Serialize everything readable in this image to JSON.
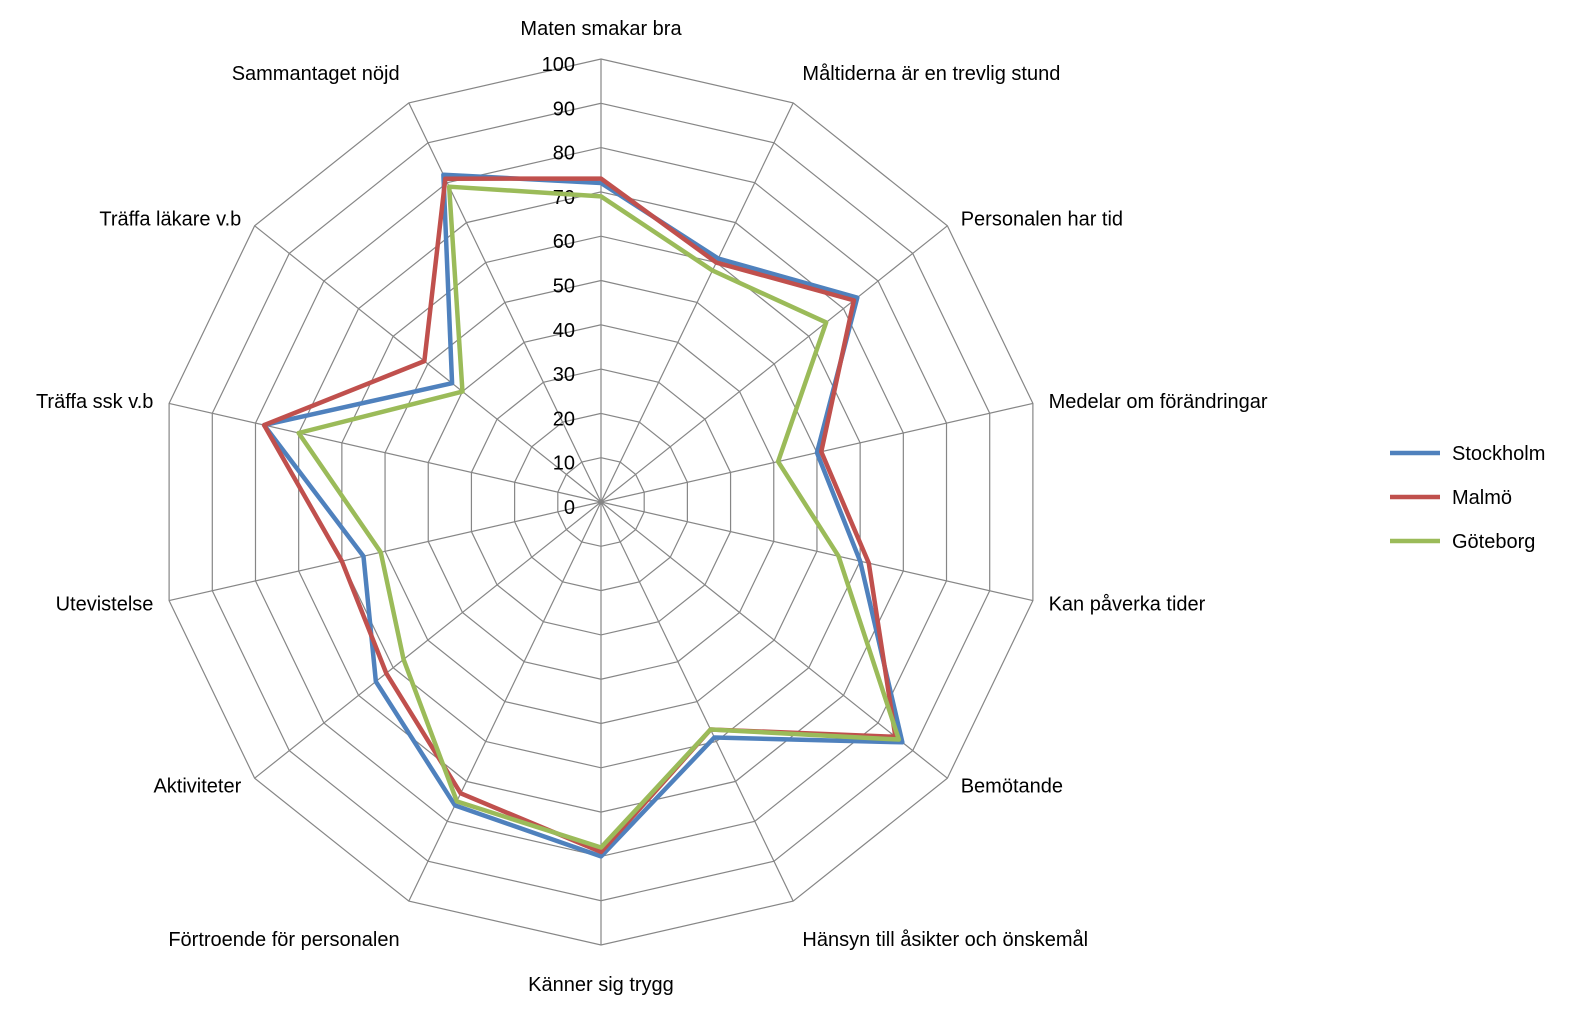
{
  "chart_data": {
    "type": "radar",
    "categories": [
      "Maten smakar bra",
      "Måltiderna är en trevlig stund",
      "Personalen har tid",
      "Medelar om förändringar",
      "Kan påverka tider",
      "Bemötande",
      "Hänsyn till åsikter och önskemål",
      "Känner sig trygg",
      "Förtroende för personalen",
      "Aktiviteter",
      "Utevistelse",
      "Träffa ssk v.b",
      "Träffa läkare v.b",
      "Sammantaget nöjd"
    ],
    "radial_ticks": [
      "0",
      "10",
      "20",
      "30",
      "40",
      "50",
      "60",
      "70",
      "80",
      "90",
      "100"
    ],
    "rlim": [
      0,
      100
    ],
    "grid": true,
    "legend_position": "right",
    "series": [
      {
        "name": "Stockholm",
        "color": "#4f81bd",
        "values": [
          72,
          61,
          74,
          50,
          60,
          87,
          59,
          80,
          76,
          65,
          55,
          78,
          43,
          82
        ]
      },
      {
        "name": "Malmö",
        "color": "#c0504d",
        "values": [
          73,
          60,
          73,
          51,
          62,
          85,
          57,
          79,
          73,
          62,
          60,
          78,
          51,
          81
        ]
      },
      {
        "name": "Göteborg",
        "color": "#9bbb59",
        "values": [
          69,
          58,
          65,
          41,
          55,
          86,
          57,
          78,
          75,
          57,
          51,
          70,
          40,
          79
        ]
      }
    ]
  }
}
